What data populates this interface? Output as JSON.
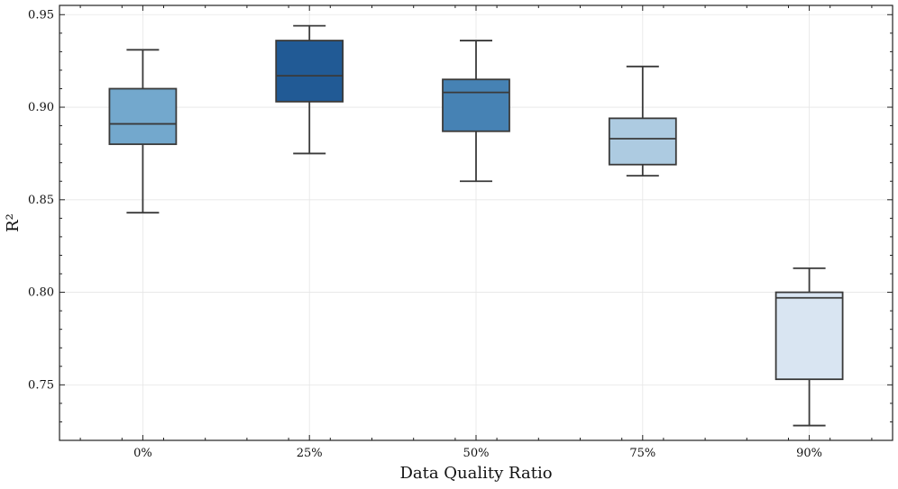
{
  "chart_data": {
    "type": "box",
    "title": "",
    "xlabel": "Data Quality Ratio",
    "ylabel": "R²",
    "ylim": [
      0.72,
      0.955
    ],
    "yticks": [
      0.75,
      0.8,
      0.85,
      0.9,
      0.95
    ],
    "ytick_labels": [
      "0.75",
      "0.80",
      "0.85",
      "0.90",
      "0.95"
    ],
    "grid": true,
    "categories": [
      "0%",
      "25%",
      "50%",
      "75%",
      "90%"
    ],
    "boxes": [
      {
        "category": "0%",
        "whisker_low": 0.843,
        "q1": 0.88,
        "median": 0.891,
        "q3": 0.91,
        "whisker_high": 0.931,
        "color": "#73a8cd"
      },
      {
        "category": "25%",
        "whisker_low": 0.875,
        "q1": 0.903,
        "median": 0.917,
        "q3": 0.936,
        "whisker_high": 0.944,
        "color": "#215a95"
      },
      {
        "category": "50%",
        "whisker_low": 0.86,
        "q1": 0.887,
        "median": 0.908,
        "q3": 0.915,
        "whisker_high": 0.936,
        "color": "#4682b4"
      },
      {
        "category": "75%",
        "whisker_low": 0.863,
        "q1": 0.869,
        "median": 0.883,
        "q3": 0.894,
        "whisker_high": 0.922,
        "color": "#adcbe1"
      },
      {
        "category": "90%",
        "whisker_low": 0.728,
        "q1": 0.753,
        "median": 0.797,
        "q3": 0.8,
        "whisker_high": 0.813,
        "color": "#d9e5f2"
      }
    ]
  }
}
